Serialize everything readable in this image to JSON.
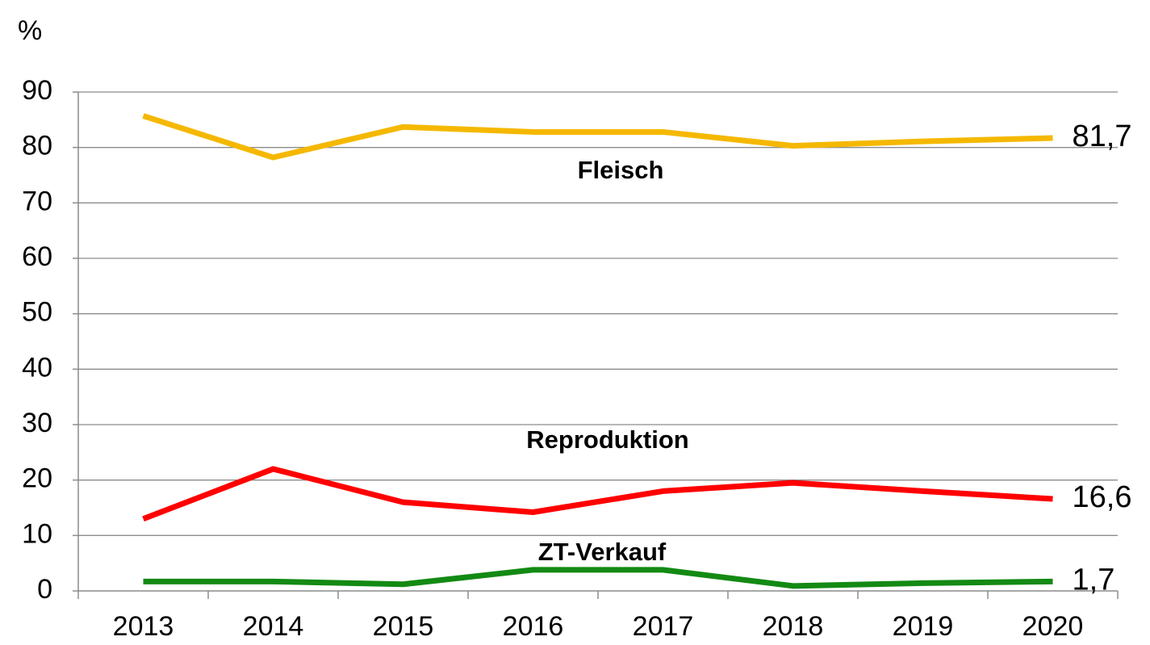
{
  "chart_data": {
    "type": "line",
    "y_label": "%",
    "categories": [
      "2013",
      "2014",
      "2015",
      "2016",
      "2017",
      "2018",
      "2019",
      "2020"
    ],
    "series": [
      {
        "name": "Fleisch",
        "color": "#f5b800",
        "values": [
          85.7,
          78.2,
          83.7,
          82.8,
          82.8,
          80.3,
          81.1,
          81.7
        ],
        "value_labels": [
          null,
          null,
          null,
          null,
          null,
          null,
          null,
          "81,7"
        ]
      },
      {
        "name": "Reproduktion",
        "color": "#ff0000",
        "values": [
          13.0,
          22.0,
          16.0,
          14.2,
          18.0,
          19.5,
          18.0,
          16.6
        ],
        "value_labels": [
          null,
          null,
          null,
          null,
          null,
          null,
          null,
          "16,6"
        ]
      },
      {
        "name": "ZT-Verkauf",
        "color": "#138a13",
        "values": [
          1.7,
          1.7,
          1.2,
          3.8,
          3.8,
          0.9,
          1.4,
          1.7
        ],
        "value_labels": [
          null,
          null,
          null,
          null,
          null,
          null,
          null,
          "1,7"
        ]
      }
    ],
    "ylim": [
      0,
      90
    ],
    "yticks": [
      0,
      10,
      20,
      30,
      40,
      50,
      60,
      70,
      80,
      90
    ],
    "grid": true
  }
}
